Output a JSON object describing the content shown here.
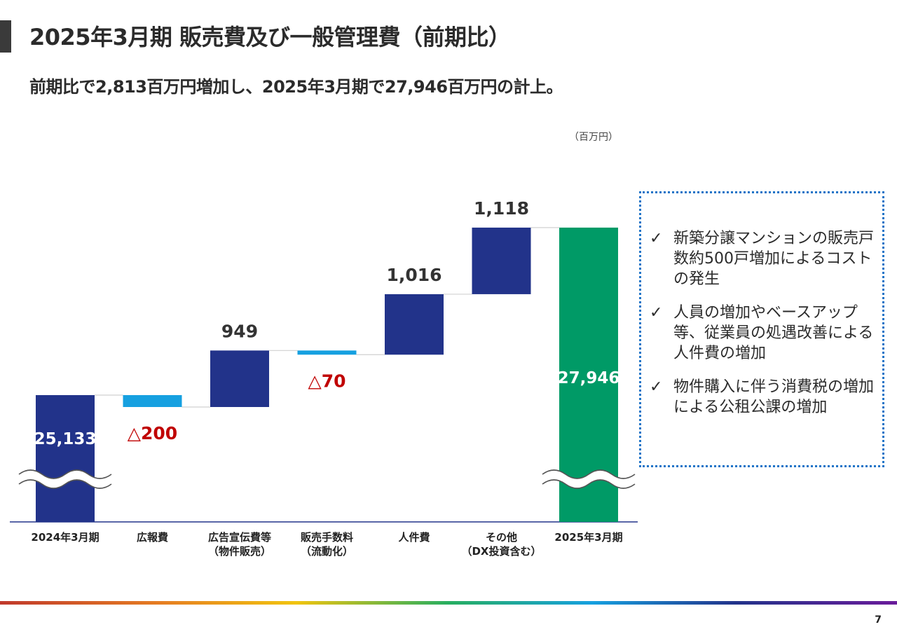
{
  "title": "2025年3月期 販売費及び一般管理費（前期比）",
  "subtitle": "前期比で2,813百万円増加し、2025年3月期で27,946百万円の計上。",
  "unit": "（百万円）",
  "colors": {
    "accent_bar": "#3a3a3a",
    "increase": "#22338a",
    "decrease": "#16a0e0",
    "total_start": "#22338a",
    "total_end": "#009a66",
    "negative_label": "#c00000",
    "axis": "#22338a",
    "connector": "#d0d0d0",
    "note_border": "#1f74c7"
  },
  "chart_data": {
    "type": "bar",
    "subtype": "waterfall",
    "y_axis_broken": true,
    "categories": [
      [
        "2024年3月期"
      ],
      [
        "広報費"
      ],
      [
        "広告宣伝費等",
        "（物件販売）"
      ],
      [
        "販売手数料",
        "（流動化）"
      ],
      [
        "人件費"
      ],
      [
        "その他",
        "（DX投資含む）"
      ],
      [
        "2025年3月期"
      ]
    ],
    "bars": [
      {
        "kind": "total",
        "value": 25133,
        "label": "25,133"
      },
      {
        "kind": "delta",
        "value": -200,
        "label": "△200"
      },
      {
        "kind": "delta",
        "value": 949,
        "label": "949"
      },
      {
        "kind": "delta",
        "value": -70,
        "label": "△70"
      },
      {
        "kind": "delta",
        "value": 1016,
        "label": "1,016"
      },
      {
        "kind": "delta",
        "value": 1118,
        "label": "1,118"
      },
      {
        "kind": "total",
        "value": 27946,
        "label": "27,946"
      }
    ]
  },
  "notes": [
    {
      "check": "✓",
      "text": "新築分譲マンションの販売戸数約500戸増加によるコストの発生"
    },
    {
      "check": "✓",
      "text": "人員の増加やベースアップ等、従業員の処遇改善による人件費の増加"
    },
    {
      "check": "✓",
      "text": "物件購入に伴う消費税の増加による公租公課の増加"
    }
  ],
  "page_number": "7"
}
